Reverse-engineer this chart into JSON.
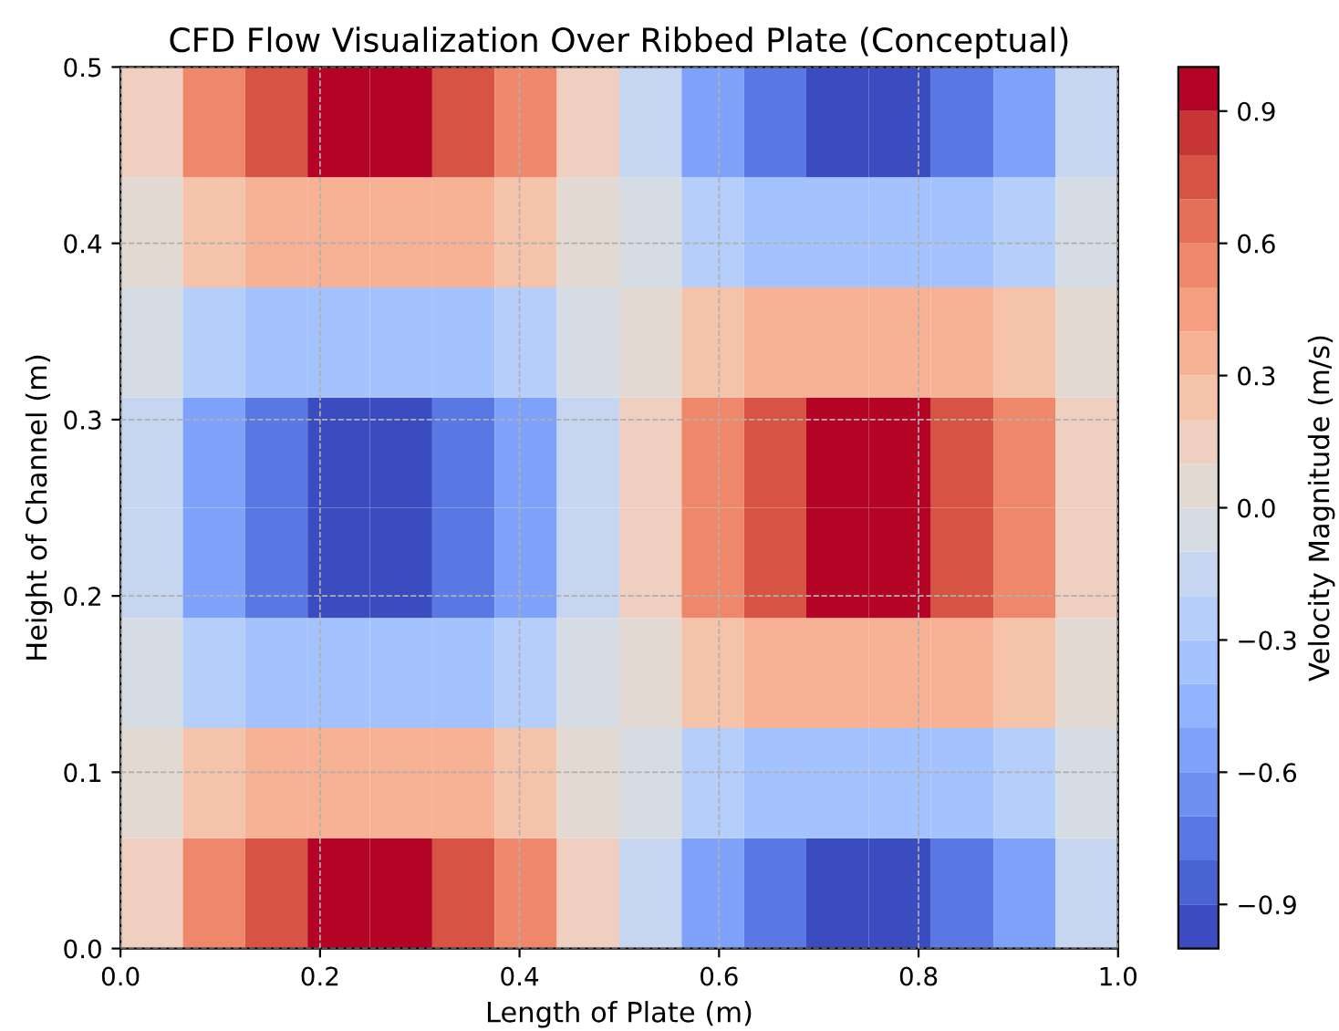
{
  "chart_data": {
    "type": "heatmap",
    "title": "CFD Flow Visualization Over Ribbed Plate (Conceptual)",
    "xlabel": "Length of Plate (m)",
    "ylabel": "Height of Channel (m)",
    "clabel": "Velocity Magnitude (m/s)",
    "xlim": [
      0,
      1
    ],
    "ylim": [
      0,
      0.5
    ],
    "xticks": [
      {
        "value": 0,
        "label": "0.0"
      },
      0.2,
      0.4,
      0.6,
      0.8,
      {
        "value": 1,
        "label": "1.0"
      }
    ],
    "yticks": [
      {
        "value": 0,
        "label": "0.0"
      },
      0.1,
      0.2,
      0.3,
      0.4,
      0.5
    ],
    "clim": [
      -1,
      1
    ],
    "cticks": [
      {
        "value": -0.9,
        "label": "−0.9"
      },
      {
        "value": -0.6,
        "label": "−0.6"
      },
      {
        "value": -0.3,
        "label": "−0.3"
      },
      {
        "value": 0,
        "label": "0.0"
      },
      0.3,
      0.6,
      0.9
    ],
    "grid": true,
    "cells": [
      [
        0.18,
        0.51,
        0.77,
        0.91,
        0.91,
        0.77,
        0.51,
        0.18,
        -0.18,
        -0.51,
        -0.77,
        -0.91,
        -0.91,
        -0.77,
        -0.51,
        -0.18
      ],
      [
        0.08,
        0.21,
        0.32,
        0.38,
        0.38,
        0.32,
        0.21,
        0.08,
        -0.08,
        -0.21,
        -0.32,
        -0.38,
        -0.38,
        -0.32,
        -0.21,
        -0.08
      ],
      [
        -0.08,
        -0.21,
        -0.32,
        -0.38,
        -0.38,
        -0.32,
        -0.21,
        -0.08,
        0.08,
        0.21,
        0.32,
        0.38,
        0.38,
        0.32,
        0.21,
        0.08
      ],
      [
        -0.18,
        -0.51,
        -0.77,
        -0.91,
        -0.91,
        -0.77,
        -0.51,
        -0.18,
        0.18,
        0.51,
        0.77,
        0.91,
        0.91,
        0.77,
        0.51,
        0.18
      ],
      [
        -0.18,
        -0.51,
        -0.77,
        -0.91,
        -0.91,
        -0.77,
        -0.51,
        -0.18,
        0.18,
        0.51,
        0.77,
        0.91,
        0.91,
        0.77,
        0.51,
        0.18
      ],
      [
        -0.08,
        -0.21,
        -0.32,
        -0.38,
        -0.38,
        -0.32,
        -0.21,
        -0.08,
        0.08,
        0.21,
        0.32,
        0.38,
        0.38,
        0.32,
        0.21,
        0.08
      ],
      [
        0.08,
        0.21,
        0.32,
        0.38,
        0.38,
        0.32,
        0.21,
        0.08,
        -0.08,
        -0.21,
        -0.32,
        -0.38,
        -0.38,
        -0.32,
        -0.21,
        -0.08
      ],
      [
        0.18,
        0.51,
        0.77,
        0.91,
        0.91,
        0.77,
        0.51,
        0.18,
        -0.18,
        -0.51,
        -0.77,
        -0.91,
        -0.91,
        -0.77,
        -0.51,
        -0.18
      ]
    ]
  }
}
